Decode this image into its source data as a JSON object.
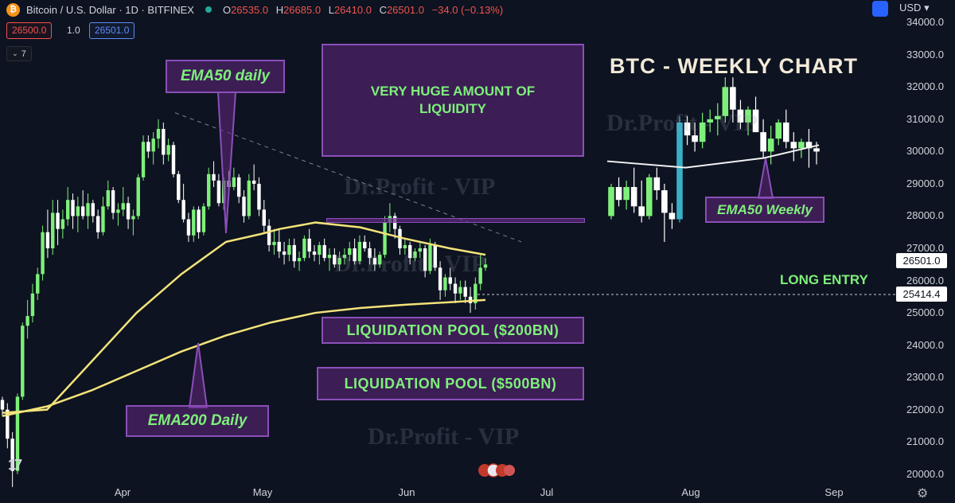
{
  "header": {
    "symbol": "Bitcoin / U.S. Dollar · 1D · BITFINEX",
    "open_k": "O",
    "open": "26535.0",
    "high_k": "H",
    "high": "26685.0",
    "low_k": "L",
    "low": "26410.0",
    "close_k": "C",
    "close": "26501.0",
    "change": "−34.0 (−0.13%)",
    "bid": "26500.0",
    "spread": "1.0",
    "ask": "26501.0",
    "indicators_count": "7",
    "currency": "USD"
  },
  "annotations": {
    "ema50_daily": "EMA50 daily",
    "ema200_daily": "EMA200 Daily",
    "huge_liquidity": "VERY HUGE AMOUNT OF LIQUIDITY",
    "liq_pool_200": "LIQUIDATION POOL ($200BN)",
    "liq_pool_500": "LIQUIDATION POOL ($500BN)",
    "weekly_title": "BTC - WEEKLY CHART",
    "ema50_weekly": "EMA50 Weekly",
    "long_entry": "LONG ENTRY",
    "watermark": "Dr.Profit - VIP"
  },
  "price_tags": {
    "current": "26501.0",
    "entry": "25414.4"
  },
  "colors": {
    "background": "#0d1320",
    "bull": "#7ef07a",
    "bear": "#ffffff",
    "ema50": "#f3e37a",
    "ema200": "#f3e37a",
    "box_border": "#8a4fb8",
    "box_text": "#7ef07a"
  },
  "chart_data": [
    {
      "type": "line",
      "title": "",
      "y_axis": {
        "ticks": [
          "34000.0",
          "33000.0",
          "32000.0",
          "31000.0",
          "30000.0",
          "29000.0",
          "28000.0",
          "27000.0",
          "26000.0",
          "25000.0",
          "24000.0",
          "23000.0",
          "22000.0",
          "21000.0",
          "20000.0"
        ],
        "ylim": [
          19500,
          34500
        ]
      },
      "x_axis": {
        "ticks": [
          "Apr",
          "May",
          "Jun",
          "Jul",
          "Aug",
          "Sep"
        ]
      },
      "series": [
        {
          "name": "EMA50 daily",
          "points": [
            [
              0,
              21900
            ],
            [
              10,
              22000
            ],
            [
              20,
              23500
            ],
            [
              30,
              25000
            ],
            [
              40,
              26200
            ],
            [
              50,
              27200
            ],
            [
              58,
              27450
            ],
            [
              62,
              27600
            ],
            [
              70,
              27800
            ],
            [
              80,
              27650
            ],
            [
              90,
              27300
            ],
            [
              100,
              27000
            ],
            [
              108,
              26800
            ]
          ]
        },
        {
          "name": "EMA200 Daily",
          "points": [
            [
              0,
              21800
            ],
            [
              10,
              22100
            ],
            [
              20,
              22600
            ],
            [
              30,
              23200
            ],
            [
              40,
              23800
            ],
            [
              50,
              24300
            ],
            [
              60,
              24700
            ],
            [
              70,
              25000
            ],
            [
              80,
              25150
            ],
            [
              90,
              25250
            ],
            [
              100,
              25330
            ],
            [
              108,
              25400
            ]
          ]
        }
      ],
      "daily_candles_ohlc": [
        [
          22300,
          22400,
          21800,
          22000
        ],
        [
          22000,
          22200,
          20800,
          21100
        ],
        [
          21100,
          21300,
          19600,
          20100
        ],
        [
          20100,
          22500,
          20000,
          22400
        ],
        [
          22400,
          24700,
          22300,
          24600
        ],
        [
          24600,
          25400,
          24200,
          24900
        ],
        [
          24900,
          25900,
          24700,
          25600
        ],
        [
          25600,
          26400,
          25400,
          26200
        ],
        [
          26200,
          27700,
          26000,
          27500
        ],
        [
          27500,
          28200,
          26700,
          27000
        ],
        [
          27000,
          28500,
          26800,
          28100
        ],
        [
          28100,
          28500,
          27100,
          27600
        ],
        [
          27600,
          28200,
          27300,
          27900
        ],
        [
          27900,
          28900,
          27700,
          28500
        ],
        [
          28500,
          28700,
          27600,
          28000
        ],
        [
          28000,
          28600,
          27500,
          28300
        ],
        [
          28300,
          28800,
          27900,
          28000
        ],
        [
          28000,
          28700,
          27600,
          28400
        ],
        [
          28400,
          28500,
          27800,
          28000
        ],
        [
          28000,
          28200,
          27300,
          27500
        ],
        [
          27500,
          28600,
          27400,
          28300
        ],
        [
          28300,
          29100,
          28200,
          28800
        ],
        [
          28800,
          28900,
          27900,
          28100
        ],
        [
          28100,
          28400,
          27700,
          28200
        ],
        [
          28200,
          28900,
          28000,
          28400
        ],
        [
          28400,
          28600,
          27600,
          27900
        ],
        [
          27900,
          28200,
          27400,
          28000
        ],
        [
          28000,
          29300,
          27900,
          29200
        ],
        [
          29200,
          30500,
          29100,
          30300
        ],
        [
          30300,
          30500,
          29800,
          30000
        ],
        [
          30000,
          30600,
          29600,
          30400
        ],
        [
          30400,
          31000,
          30100,
          30700
        ],
        [
          30700,
          30900,
          29600,
          29900
        ],
        [
          29900,
          30400,
          29700,
          30200
        ],
        [
          30200,
          30300,
          29200,
          29300
        ],
        [
          29300,
          29400,
          28400,
          28500
        ],
        [
          28500,
          29000,
          27800,
          27900
        ],
        [
          27900,
          28100,
          27200,
          27400
        ],
        [
          27400,
          28300,
          27200,
          28200
        ],
        [
          28200,
          28300,
          27300,
          27500
        ],
        [
          27500,
          28400,
          27400,
          28300
        ],
        [
          28300,
          29500,
          28200,
          29300
        ],
        [
          29300,
          29700,
          28900,
          29100
        ],
        [
          29100,
          29300,
          28300,
          28400
        ],
        [
          28400,
          29200,
          28200,
          29100
        ],
        [
          29100,
          29400,
          28700,
          28900
        ],
        [
          28900,
          29500,
          28800,
          29200
        ],
        [
          29200,
          29300,
          28400,
          28600
        ],
        [
          28600,
          28800,
          27800,
          28000
        ],
        [
          28000,
          29300,
          27900,
          29100
        ],
        [
          29100,
          29600,
          28800,
          29000
        ],
        [
          29000,
          29200,
          28000,
          28200
        ],
        [
          28200,
          28500,
          27500,
          27700
        ],
        [
          27700,
          27900,
          26900,
          27100
        ],
        [
          27100,
          27600,
          26800,
          27200
        ],
        [
          27200,
          27600,
          26700,
          26900
        ],
        [
          26900,
          27200,
          26500,
          26800
        ],
        [
          26800,
          27300,
          26600,
          27100
        ],
        [
          27100,
          27300,
          26400,
          26600
        ],
        [
          26600,
          26900,
          26300,
          26700
        ],
        [
          26700,
          27400,
          26600,
          27300
        ],
        [
          27300,
          27600,
          26700,
          26900
        ],
        [
          26900,
          27100,
          26600,
          26800
        ],
        [
          26800,
          27200,
          26500,
          27100
        ],
        [
          27100,
          27300,
          26600,
          26700
        ],
        [
          26700,
          27000,
          26300,
          26800
        ],
        [
          26800,
          27000,
          26400,
          26500
        ],
        [
          26500,
          26900,
          26300,
          26700
        ],
        [
          26700,
          27000,
          26500,
          26800
        ],
        [
          26800,
          27200,
          26600,
          27000
        ],
        [
          27000,
          27300,
          26500,
          26600
        ],
        [
          26600,
          27400,
          26500,
          27200
        ],
        [
          27200,
          27400,
          26900,
          27000
        ],
        [
          27000,
          27200,
          26500,
          26700
        ],
        [
          26700,
          27000,
          26300,
          26500
        ],
        [
          26500,
          26900,
          26400,
          26800
        ],
        [
          26800,
          28000,
          26700,
          27800
        ],
        [
          27800,
          28400,
          27500,
          28000
        ],
        [
          28000,
          28100,
          27300,
          27600
        ],
        [
          27600,
          27700,
          26800,
          27000
        ],
        [
          27000,
          27300,
          26800,
          27100
        ],
        [
          27100,
          27200,
          26500,
          26700
        ],
        [
          26700,
          27000,
          26600,
          26900
        ],
        [
          26900,
          27200,
          26700,
          27000
        ],
        [
          27000,
          27100,
          26100,
          26300
        ],
        [
          26300,
          27300,
          26200,
          27100
        ],
        [
          27100,
          27200,
          26300,
          26400
        ],
        [
          26400,
          26600,
          25400,
          25700
        ],
        [
          25700,
          26200,
          25500,
          26100
        ],
        [
          26100,
          26400,
          25700,
          25900
        ],
        [
          25900,
          26100,
          25300,
          25600
        ],
        [
          25600,
          26000,
          25400,
          25800
        ],
        [
          25800,
          26000,
          25300,
          25500
        ],
        [
          25500,
          25800,
          25000,
          25300
        ],
        [
          25300,
          26100,
          25100,
          25900
        ],
        [
          25900,
          26800,
          25700,
          26400
        ],
        [
          26400,
          26700,
          26300,
          26500
        ]
      ]
    },
    {
      "type": "line",
      "title": "BTC - WEEKLY CHART",
      "series": [
        {
          "name": "EMA50 Weekly",
          "points": [
            [
              0,
              29700
            ],
            [
              10,
              29500
            ],
            [
              20,
              29800
            ],
            [
              27,
              30200
            ]
          ]
        }
      ],
      "weekly_candles_ohlc": [
        [
          28000,
          29000,
          27900,
          28900
        ],
        [
          28900,
          29200,
          28300,
          28500
        ],
        [
          28500,
          29100,
          28200,
          28900
        ],
        [
          28900,
          29500,
          28100,
          28300
        ],
        [
          28300,
          29100,
          27800,
          28000
        ],
        [
          28000,
          29300,
          27900,
          29200
        ],
        [
          29200,
          29500,
          28500,
          28800
        ],
        [
          28800,
          29000,
          27200,
          28100
        ],
        [
          28100,
          28400,
          27600,
          27900
        ],
        [
          27900,
          31100,
          27800,
          30900
        ],
        [
          30900,
          31100,
          30200,
          30500
        ],
        [
          30500,
          30900,
          30000,
          30300
        ],
        [
          30300,
          31200,
          30100,
          30900
        ],
        [
          30900,
          31300,
          30600,
          31000
        ],
        [
          31000,
          31500,
          30500,
          31100
        ],
        [
          31100,
          32300,
          30900,
          32000
        ],
        [
          32000,
          32300,
          30900,
          31300
        ],
        [
          31300,
          31600,
          30700,
          30900
        ],
        [
          30900,
          31400,
          30500,
          31300
        ],
        [
          31300,
          31700,
          30900,
          30600
        ],
        [
          30600,
          31000,
          29800,
          30000
        ],
        [
          30000,
          30800,
          29600,
          30400
        ],
        [
          30400,
          31000,
          30200,
          30900
        ],
        [
          30900,
          31300,
          30100,
          30300
        ],
        [
          30300,
          30600,
          29700,
          30100
        ],
        [
          30100,
          30400,
          29800,
          30300
        ],
        [
          30300,
          30700,
          29500,
          30100
        ],
        [
          30100,
          30300,
          29600,
          30000
        ]
      ]
    }
  ]
}
